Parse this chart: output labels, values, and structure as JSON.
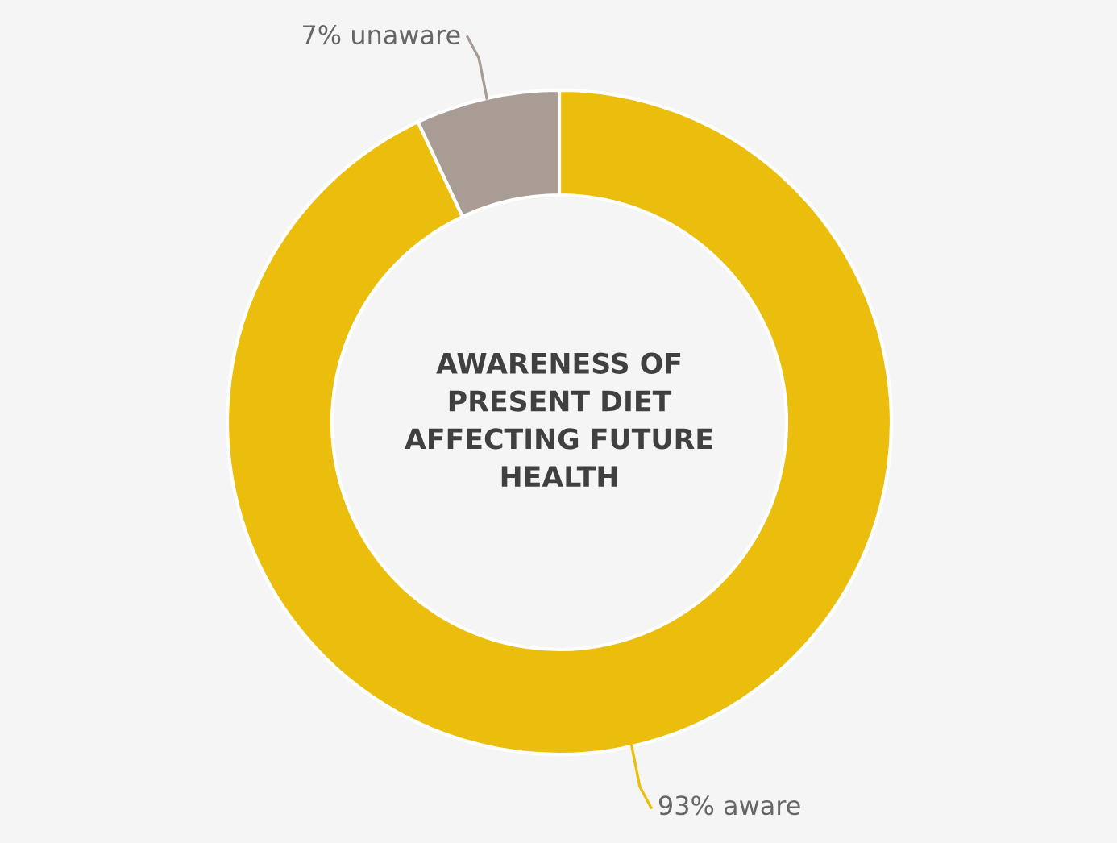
{
  "chart_data": {
    "type": "donut",
    "title": "AWARENESS OF\nPRESENT DIET\nAFFECTING FUTURE\nHEALTH",
    "categories": [
      "93% aware",
      "7% unaware"
    ],
    "values": [
      93,
      7
    ],
    "colors": [
      "#ebbd0d",
      "#a89c94"
    ],
    "legend": false
  }
}
